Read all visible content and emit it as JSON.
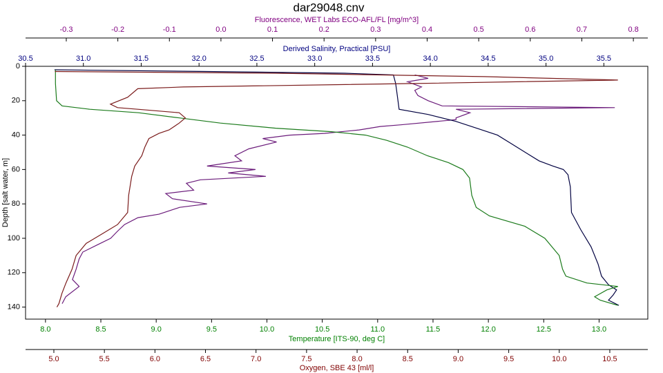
{
  "chart_data": {
    "type": "line",
    "title": "dar29048.cnv",
    "y_label": "Depth [salt water, m]",
    "ylim": [
      0,
      147
    ],
    "yticks": [
      0,
      20,
      40,
      60,
      80,
      100,
      120,
      140
    ],
    "series": [
      {
        "name": "Fluorescence, WET Labs ECO-AFL/FL [mg/m^3]",
        "color": "#6a1a7a",
        "axis_color": "#800080",
        "xlim": [
          -0.379,
          0.828
        ],
        "xticks": [
          -0.3,
          -0.2,
          -0.1,
          {
            "value": 0,
            "label": "0.0"
          },
          0.1,
          0.2,
          0.3,
          0.4,
          0.5,
          0.6,
          0.7,
          0.8
        ],
        "depths": [
          5,
          7,
          9,
          12,
          14,
          17,
          20,
          23,
          24,
          25,
          27,
          30,
          31,
          34,
          35,
          37,
          39,
          40,
          42,
          44,
          48,
          52,
          55,
          58,
          60,
          62,
          64,
          66,
          68,
          72,
          74,
          77,
          80,
          82,
          86,
          88,
          92,
          96,
          100,
          104,
          108,
          112,
          118,
          124,
          128,
          134,
          138
        ],
        "values": [
          0.376,
          0.402,
          0.362,
          0.389,
          0.376,
          0.382,
          0.402,
          0.429,
          0.764,
          0.456,
          0.483,
          0.456,
          0.456,
          0.349,
          0.309,
          0.268,
          0.201,
          0.134,
          0.081,
          0.108,
          0.054,
          0.027,
          0.04,
          -0.027,
          0.067,
          0.014,
          0.087,
          -0.04,
          -0.067,
          -0.053,
          -0.107,
          -0.094,
          -0.027,
          -0.08,
          -0.12,
          -0.161,
          -0.187,
          -0.201,
          -0.214,
          -0.241,
          -0.268,
          -0.275,
          -0.281,
          -0.288,
          -0.275,
          -0.301,
          -0.308
        ]
      },
      {
        "name": "Derived Salinity, Practical [PSU]",
        "color": "#000040",
        "axis_color": "#000080",
        "xlim": [
          30.5,
          35.88
        ],
        "xticks": [
          30.5,
          {
            "value": 31,
            "label": "31.0"
          },
          31.5,
          {
            "value": 32,
            "label": "32.0"
          },
          32.5,
          {
            "value": 33,
            "label": "33.0"
          },
          33.5,
          {
            "value": 34,
            "label": "34.0"
          },
          34.5,
          {
            "value": 35,
            "label": "35.0"
          },
          35.5
        ],
        "depths": [
          2,
          3,
          4,
          5,
          10,
          15,
          25,
          28,
          32,
          36,
          40,
          45,
          50,
          55,
          58,
          60,
          63,
          70,
          85,
          95,
          105,
          115,
          122,
          127,
          130,
          133,
          136,
          139
        ],
        "values": [
          30.75,
          32.07,
          33.26,
          33.68,
          33.7,
          33.71,
          33.73,
          33.98,
          34.22,
          34.4,
          34.58,
          34.7,
          34.82,
          34.94,
          35.06,
          35.15,
          35.19,
          35.21,
          35.22,
          35.3,
          35.39,
          35.45,
          35.48,
          35.54,
          35.61,
          35.58,
          35.54,
          35.63
        ]
      },
      {
        "name": "Temperature [ITS-90, deg C]",
        "color": "#1a7a1a",
        "axis_color": "#008000",
        "xlim": [
          7.82,
          13.44
        ],
        "xticks": [
          {
            "value": 8,
            "label": "8.0"
          },
          8.5,
          {
            "value": 9,
            "label": "9.0"
          },
          9.5,
          {
            "value": 10,
            "label": "10.0"
          },
          10.5,
          {
            "value": 11,
            "label": "11.0"
          },
          11.5,
          {
            "value": 12,
            "label": "12.0"
          },
          12.5,
          {
            "value": 13,
            "label": "13.0"
          }
        ],
        "depths": [
          2,
          10,
          20,
          23,
          25,
          27,
          30,
          33,
          36,
          38,
          40,
          43,
          47,
          52,
          56,
          60,
          65,
          75,
          82,
          87,
          93,
          100,
          110,
          118,
          122,
          126,
          128,
          130,
          134,
          136,
          139
        ],
        "values": [
          8.09,
          8.09,
          8.1,
          8.15,
          8.4,
          8.84,
          9.21,
          9.58,
          10.08,
          10.58,
          10.89,
          11.08,
          11.27,
          11.45,
          11.64,
          11.77,
          11.83,
          11.85,
          11.89,
          12.01,
          12.33,
          12.51,
          12.64,
          12.67,
          12.7,
          12.89,
          13.17,
          13.07,
          12.96,
          13.01,
          13.17
        ]
      },
      {
        "name": "Oxygen, SBE 43 [ml/l]",
        "color": "#7a1a1a",
        "axis_color": "#800000",
        "xlim": [
          4.72,
          10.876
        ],
        "xticks": [
          {
            "value": 5,
            "label": "5.0"
          },
          5.5,
          {
            "value": 6,
            "label": "6.0"
          },
          6.5,
          {
            "value": 7,
            "label": "7.0"
          },
          7.5,
          {
            "value": 8,
            "label": "8.0"
          },
          8.5,
          {
            "value": 9,
            "label": "9.0"
          },
          9.5,
          {
            "value": 10,
            "label": "10.0"
          },
          10.5
        ],
        "depths": [
          3,
          4,
          6,
          8,
          10,
          12,
          13,
          18,
          22,
          24,
          25,
          27,
          30,
          33,
          37,
          39,
          42,
          47,
          52,
          58,
          64,
          75,
          85,
          92,
          97,
          103,
          110,
          118,
          126,
          132,
          138,
          140
        ],
        "values": [
          5.01,
          7.2,
          9.25,
          10.58,
          8.57,
          6.28,
          5.83,
          5.73,
          5.56,
          5.63,
          5.83,
          6.24,
          6.3,
          6.24,
          6.14,
          6.04,
          5.94,
          5.9,
          5.87,
          5.8,
          5.77,
          5.74,
          5.73,
          5.63,
          5.49,
          5.32,
          5.22,
          5.18,
          5.12,
          5.08,
          5.05,
          5.03
        ]
      }
    ]
  }
}
